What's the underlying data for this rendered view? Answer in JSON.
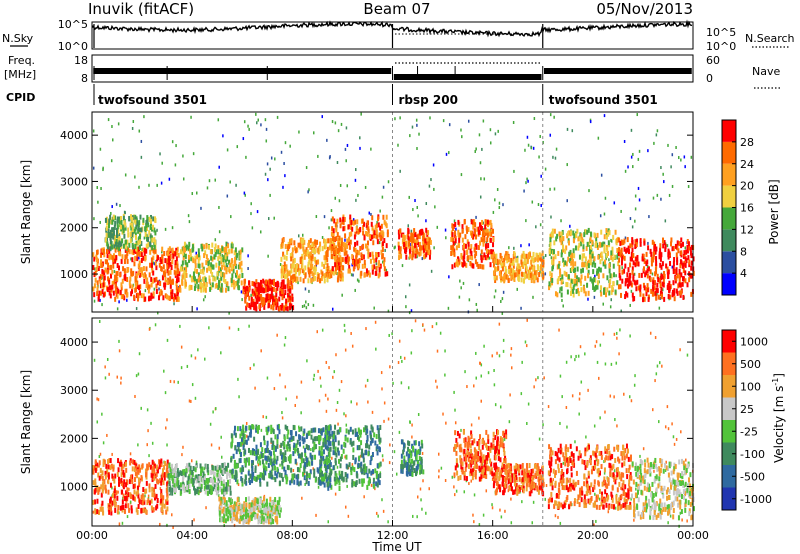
{
  "header": {
    "station": "Inuvik (fitACF)",
    "beam": "Beam 07",
    "date": "05/Nov/2013"
  },
  "top_panels": {
    "nsky_label": "N.Sky",
    "nsky_ticks": [
      "10^5",
      "10^0"
    ],
    "nsearch_label": "N.Search",
    "nsearch_ticks": [
      "10^5",
      "10^0"
    ],
    "freq_label": "Freq.",
    "freq_unit": "[MHz]",
    "freq_ticks": [
      "18",
      "8"
    ],
    "nave_label": "Nave",
    "nave_ticks": [
      "60",
      "0"
    ],
    "cpid_label": "CPID",
    "cpid_segments": [
      {
        "name": "twofsound 3501",
        "start": 0,
        "end": 12
      },
      {
        "name": "rbsp 200",
        "start": 12,
        "end": 18
      },
      {
        "name": "twofsound 3501",
        "start": 18,
        "end": 24
      }
    ]
  },
  "chart_data": [
    {
      "type": "heatmap",
      "name": "Power",
      "x_range": [
        0,
        24
      ],
      "ylabel": "Slant Range [km]",
      "ylim": [
        180,
        4500
      ],
      "y_ticks": [
        "1000",
        "2000",
        "3000",
        "4000"
      ],
      "colorbar_label": "Power [dB]",
      "colorbar_ticks": [
        "4",
        "8",
        "12",
        "16",
        "20",
        "24",
        "28"
      ],
      "colors": [
        "#0000ff",
        "#2b4ea0",
        "#3f8a5e",
        "#45a83a",
        "#f0d040",
        "#ffa020",
        "#ff6a00",
        "#ff0000"
      ],
      "regions": [
        {
          "t0": 0.0,
          "t1": 3.5,
          "r0": 500,
          "r1": 1600,
          "level": 6
        },
        {
          "t0": 0.5,
          "t1": 2.5,
          "r0": 1600,
          "r1": 2300,
          "level": 3
        },
        {
          "t0": 3.5,
          "t1": 6.0,
          "r0": 700,
          "r1": 1700,
          "level": 4
        },
        {
          "t0": 6.0,
          "t1": 8.0,
          "r0": 300,
          "r1": 900,
          "level": 7
        },
        {
          "t0": 7.5,
          "t1": 10.0,
          "r0": 900,
          "r1": 1800,
          "level": 5
        },
        {
          "t0": 9.5,
          "t1": 11.8,
          "r0": 1000,
          "r1": 2300,
          "level": 6
        },
        {
          "t0": 12.2,
          "t1": 13.5,
          "r0": 1400,
          "r1": 2000,
          "level": 6
        },
        {
          "t0": 14.3,
          "t1": 16.0,
          "r0": 1200,
          "r1": 2200,
          "level": 6
        },
        {
          "t0": 16.0,
          "t1": 18.0,
          "r0": 900,
          "r1": 1500,
          "level": 5
        },
        {
          "t0": 18.2,
          "t1": 21.0,
          "r0": 600,
          "r1": 2000,
          "level": 4
        },
        {
          "t0": 21.0,
          "t1": 24.0,
          "r0": 500,
          "r1": 1800,
          "level": 7
        }
      ]
    },
    {
      "type": "heatmap",
      "name": "Velocity",
      "x_range": [
        0,
        24
      ],
      "xlabel": "Time UT",
      "x_ticks": [
        "00:00",
        "04:00",
        "08:00",
        "12:00",
        "16:00",
        "20:00",
        "00:00"
      ],
      "ylabel": "Slant Range [km]",
      "ylim": [
        180,
        4500
      ],
      "y_ticks": [
        "1000",
        "2000",
        "3000",
        "4000"
      ],
      "colorbar_label": "Velocity [m s",
      "colorbar_superscript": "-1",
      "colorbar_unit_close": "]",
      "colorbar_ticks": [
        "1000",
        "500",
        "100",
        "25",
        "-25",
        "-100",
        "-500",
        "-1000"
      ],
      "colors": [
        "#2035b0",
        "#2f6aa0",
        "#3f8a5e",
        "#52c33a",
        "#c8c8c8",
        "#f0a030",
        "#ff7020",
        "#ff0000"
      ],
      "regions": [
        {
          "t0": 0.0,
          "t1": 3.0,
          "r0": 500,
          "r1": 1600,
          "level": 6
        },
        {
          "t0": 3.0,
          "t1": 5.5,
          "r0": 900,
          "r1": 1500,
          "level": 3
        },
        {
          "t0": 5.0,
          "t1": 7.5,
          "r0": 300,
          "r1": 800,
          "level": 4
        },
        {
          "t0": 5.5,
          "t1": 9.5,
          "r0": 1100,
          "r1": 2300,
          "level": 2
        },
        {
          "t0": 9.0,
          "t1": 11.5,
          "r0": 1000,
          "r1": 2300,
          "level": 2
        },
        {
          "t0": 12.3,
          "t1": 13.2,
          "r0": 1300,
          "r1": 2000,
          "level": 2
        },
        {
          "t0": 14.4,
          "t1": 16.5,
          "r0": 1200,
          "r1": 2200,
          "level": 6
        },
        {
          "t0": 16.0,
          "t1": 18.0,
          "r0": 900,
          "r1": 1500,
          "level": 6
        },
        {
          "t0": 18.2,
          "t1": 21.5,
          "r0": 600,
          "r1": 1900,
          "level": 6
        },
        {
          "t0": 21.5,
          "t1": 24.0,
          "r0": 400,
          "r1": 1600,
          "level": 4
        }
      ]
    }
  ]
}
